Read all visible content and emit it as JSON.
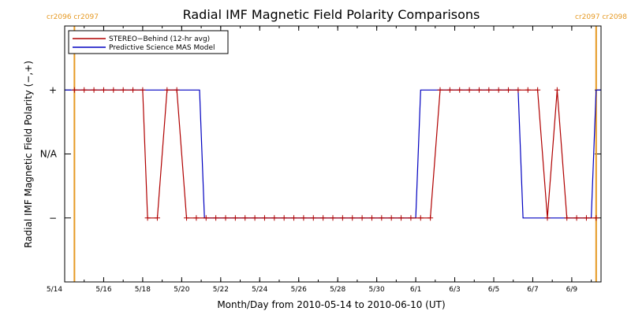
{
  "chart_data": {
    "type": "line",
    "title": "Radial IMF Magnetic Field Polarity Comparisons",
    "xlabel": "Month/Day from 2010-05-14 to 2010-06-10 (UT)",
    "ylabel": "Radial IMF Magnetic Field Polarity (−,+)",
    "x_start": "2010-05-14",
    "x_end": "2010-06-10",
    "x_ticks": [
      "5/14",
      "5/16",
      "5/18",
      "5/20",
      "5/22",
      "5/24",
      "5/26",
      "5/28",
      "5/30",
      "6/1",
      "6/3",
      "6/5",
      "6/7",
      "6/9"
    ],
    "y_ticks": [
      "+",
      "N/A",
      "−"
    ],
    "ylim": [
      -2,
      2
    ],
    "carrington_labels": {
      "left": "cr2096 cr2097",
      "right": "cr2097 cr2098",
      "left_date": "2010-05-14 12:00",
      "right_date": "2010-06-10 06:00",
      "color": "#e69a25"
    },
    "legend_position": "top-left",
    "series": [
      {
        "name": "STEREO−Behind (12-hr avg)",
        "color": "#b00000",
        "markers": true,
        "points": [
          [
            "2010-05-14 12:00",
            1
          ],
          [
            "2010-05-15 00:00",
            1
          ],
          [
            "2010-05-15 12:00",
            1
          ],
          [
            "2010-05-16 00:00",
            1
          ],
          [
            "2010-05-16 12:00",
            1
          ],
          [
            "2010-05-17 00:00",
            1
          ],
          [
            "2010-05-17 12:00",
            1
          ],
          [
            "2010-05-18 00:00",
            1
          ],
          [
            "2010-05-18 06:00",
            -1
          ],
          [
            "2010-05-18 18:00",
            -1
          ],
          [
            "2010-05-19 06:00",
            1
          ],
          [
            "2010-05-19 18:00",
            1
          ],
          [
            "2010-05-20 06:00",
            -1
          ],
          [
            "2010-05-20 18:00",
            -1
          ],
          [
            "2010-05-21 06:00",
            -1
          ],
          [
            "2010-05-21 18:00",
            -1
          ],
          [
            "2010-05-22 06:00",
            -1
          ],
          [
            "2010-05-22 18:00",
            -1
          ],
          [
            "2010-05-23 06:00",
            -1
          ],
          [
            "2010-05-23 18:00",
            -1
          ],
          [
            "2010-05-24 06:00",
            -1
          ],
          [
            "2010-05-24 18:00",
            -1
          ],
          [
            "2010-05-25 06:00",
            -1
          ],
          [
            "2010-05-25 18:00",
            -1
          ],
          [
            "2010-05-26 06:00",
            -1
          ],
          [
            "2010-05-26 18:00",
            -1
          ],
          [
            "2010-05-27 06:00",
            -1
          ],
          [
            "2010-05-27 18:00",
            -1
          ],
          [
            "2010-05-28 06:00",
            -1
          ],
          [
            "2010-05-28 18:00",
            -1
          ],
          [
            "2010-05-29 06:00",
            -1
          ],
          [
            "2010-05-29 18:00",
            -1
          ],
          [
            "2010-05-30 06:00",
            -1
          ],
          [
            "2010-05-30 18:00",
            -1
          ],
          [
            "2010-05-31 06:00",
            -1
          ],
          [
            "2010-05-31 18:00",
            -1
          ],
          [
            "2010-06-01 06:00",
            -1
          ],
          [
            "2010-06-01 18:00",
            -1
          ],
          [
            "2010-06-02 06:00",
            1
          ],
          [
            "2010-06-02 18:00",
            1
          ],
          [
            "2010-06-03 06:00",
            1
          ],
          [
            "2010-06-03 18:00",
            1
          ],
          [
            "2010-06-04 06:00",
            1
          ],
          [
            "2010-06-04 18:00",
            1
          ],
          [
            "2010-06-05 06:00",
            1
          ],
          [
            "2010-06-05 18:00",
            1
          ],
          [
            "2010-06-06 06:00",
            1
          ],
          [
            "2010-06-06 18:00",
            1
          ],
          [
            "2010-06-07 06:00",
            1
          ],
          [
            "2010-06-07 18:00",
            -1
          ],
          [
            "2010-06-08 06:00",
            1
          ],
          [
            "2010-06-08 18:00",
            -1
          ],
          [
            "2010-06-09 06:00",
            -1
          ],
          [
            "2010-06-09 18:00",
            -1
          ],
          [
            "2010-06-10 06:00",
            -1
          ]
        ]
      },
      {
        "name": "Predictive Science MAS Model",
        "color": "#0000c0",
        "markers": false,
        "points": [
          [
            "2010-05-14 00:00",
            1
          ],
          [
            "2010-05-20 22:00",
            1
          ],
          [
            "2010-05-21 04:00",
            -1
          ],
          [
            "2010-06-01 00:00",
            -1
          ],
          [
            "2010-06-01 06:00",
            1
          ],
          [
            "2010-06-06 06:00",
            1
          ],
          [
            "2010-06-06 12:00",
            -1
          ],
          [
            "2010-06-10 00:00",
            -1
          ],
          [
            "2010-06-10 06:00",
            1
          ],
          [
            "2010-06-10 12:00",
            1
          ]
        ]
      }
    ]
  }
}
